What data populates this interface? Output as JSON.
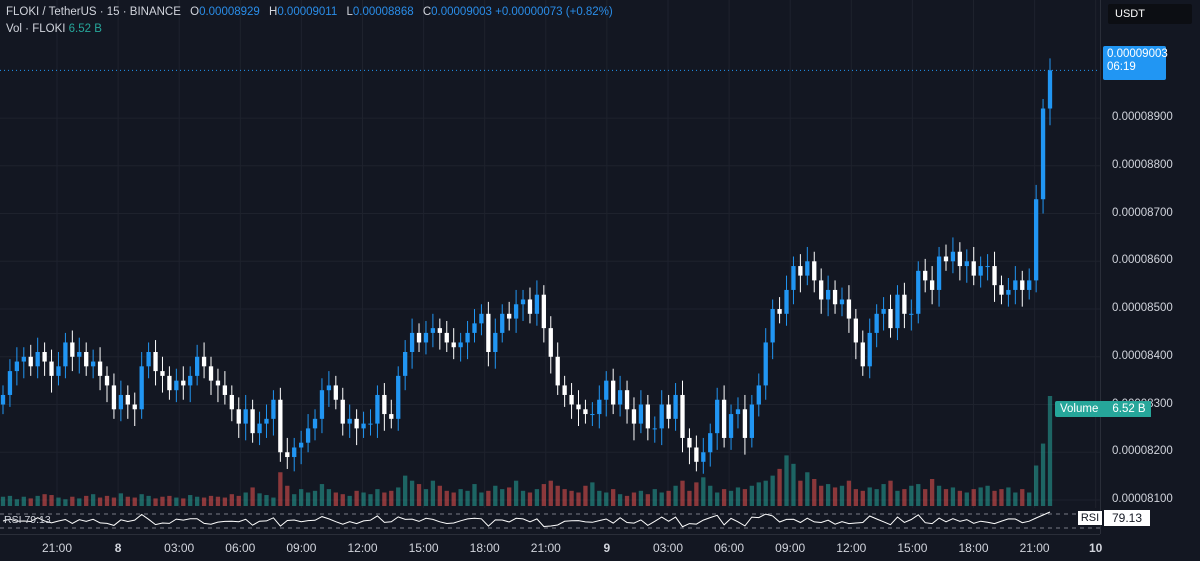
{
  "legend": {
    "symbol": "FLOKI / TetherUS · 15 · BINANCE",
    "open_key": "O",
    "open": "0.00008929",
    "high_key": "H",
    "high": "0.00009011",
    "low_key": "L",
    "low": "0.00008868",
    "close_key": "C",
    "close": "0.00009003",
    "change": "+0.00000073 (+0.82%)",
    "vol_label": "Vol · FLOKI",
    "vol_value": "6.52 B"
  },
  "currency": "USDT",
  "last_price": {
    "value": "0.00009003",
    "countdown": "06:19"
  },
  "volume_tag": {
    "label": "Volume",
    "value": "6.52 B"
  },
  "rsi": {
    "label": "RSI",
    "value": "79.13"
  },
  "colors": {
    "up": "#2196f3",
    "down": "#ffffff",
    "vol_up": "#26a69a",
    "vol_down": "#ef5350",
    "bg": "#131722"
  },
  "chart_data": {
    "type": "candlestick",
    "price_ticks": [
      "0.00008900",
      "0.00008800",
      "0.00008700",
      "0.00008600",
      "0.00008500",
      "0.00008400",
      "0.00008300",
      "0.00008200",
      "0.00008100"
    ],
    "time_ticks": [
      "21:00",
      "8",
      "03:00",
      "06:00",
      "09:00",
      "12:00",
      "15:00",
      "18:00",
      "21:00",
      "9",
      "03:00",
      "06:00",
      "09:00",
      "12:00",
      "15:00",
      "18:00",
      "21:00",
      "10"
    ],
    "ylim": [
      8.1e-05,
      9.03e-05
    ],
    "price_path": [
      8.32e-05,
      8.37e-05,
      8.39e-05,
      8.4e-05,
      8.38e-05,
      8.41e-05,
      8.39e-05,
      8.36e-05,
      8.38e-05,
      8.43e-05,
      8.4e-05,
      8.41e-05,
      8.38e-05,
      8.39e-05,
      8.36e-05,
      8.34e-05,
      8.29e-05,
      8.32e-05,
      8.3e-05,
      8.29e-05,
      8.38e-05,
      8.41e-05,
      8.37e-05,
      8.36e-05,
      8.33e-05,
      8.35e-05,
      8.34e-05,
      8.36e-05,
      8.4e-05,
      8.38e-05,
      8.35e-05,
      8.34e-05,
      8.32e-05,
      8.29e-05,
      8.26e-05,
      8.29e-05,
      8.24e-05,
      8.26e-05,
      8.27e-05,
      8.31e-05,
      8.2e-05,
      8.19e-05,
      8.21e-05,
      8.22e-05,
      8.25e-05,
      8.27e-05,
      8.33e-05,
      8.34e-05,
      8.31e-05,
      8.26e-05,
      8.27e-05,
      8.25e-05,
      8.26e-05,
      8.26e-05,
      8.32e-05,
      8.28e-05,
      8.27e-05,
      8.36e-05,
      8.41e-05,
      8.45e-05,
      8.43e-05,
      8.45e-05,
      8.46e-05,
      8.45e-05,
      8.43e-05,
      8.42e-05,
      8.43e-05,
      8.45e-05,
      8.47e-05,
      8.49e-05,
      8.41e-05,
      8.45e-05,
      8.49e-05,
      8.48e-05,
      8.51e-05,
      8.52e-05,
      8.49e-05,
      8.53e-05,
      8.46e-05,
      8.4e-05,
      8.34e-05,
      8.32e-05,
      8.3e-05,
      8.29e-05,
      8.28e-05,
      8.28e-05,
      8.31e-05,
      8.35e-05,
      8.3e-05,
      8.33e-05,
      8.29e-05,
      8.26e-05,
      8.3e-05,
      8.25e-05,
      8.25e-05,
      8.3e-05,
      8.27e-05,
      8.32e-05,
      8.23e-05,
      8.21e-05,
      8.18e-05,
      8.2e-05,
      8.24e-05,
      8.31e-05,
      8.23e-05,
      8.28e-05,
      8.29e-05,
      8.23e-05,
      8.3e-05,
      8.34e-05,
      8.43e-05,
      8.5e-05,
      8.49e-05,
      8.54e-05,
      8.59e-05,
      8.57e-05,
      8.6e-05,
      8.56e-05,
      8.52e-05,
      8.54e-05,
      8.51e-05,
      8.52e-05,
      8.48e-05,
      8.43e-05,
      8.38e-05,
      8.45e-05,
      8.49e-05,
      8.5e-05,
      8.46e-05,
      8.53e-05,
      8.49e-05,
      8.49e-05,
      8.58e-05,
      8.56e-05,
      8.54e-05,
      8.61e-05,
      8.6e-05,
      8.62e-05,
      8.59e-05,
      8.6e-05,
      8.57e-05,
      8.59e-05,
      8.59e-05,
      8.55e-05,
      8.53e-05,
      8.54e-05,
      8.56e-05,
      8.54e-05,
      8.56e-05,
      8.73e-05,
      8.92e-05,
      9e-05
    ],
    "volume_path": [
      0.55,
      0.6,
      0.4,
      0.55,
      0.45,
      0.6,
      0.7,
      0.65,
      0.5,
      0.4,
      0.55,
      0.45,
      0.6,
      0.7,
      0.5,
      0.6,
      0.5,
      0.75,
      0.55,
      0.5,
      0.7,
      0.6,
      0.45,
      0.55,
      0.6,
      0.5,
      0.45,
      0.65,
      0.55,
      0.5,
      0.6,
      0.55,
      0.5,
      0.7,
      0.6,
      0.8,
      1.1,
      0.75,
      0.65,
      0.5,
      2.0,
      1.2,
      0.7,
      1.0,
      0.8,
      0.9,
      1.3,
      1.0,
      0.8,
      0.7,
      0.6,
      0.9,
      0.8,
      0.7,
      1.0,
      0.8,
      0.9,
      1.1,
      1.8,
      1.5,
      1.3,
      1.0,
      1.5,
      1.2,
      0.9,
      0.8,
      1.0,
      0.9,
      1.3,
      0.8,
      0.9,
      1.2,
      1.0,
      1.1,
      1.5,
      0.9,
      0.8,
      1.0,
      1.3,
      1.5,
      1.2,
      1.0,
      0.9,
      0.8,
      1.2,
      1.4,
      0.9,
      0.8,
      1.0,
      0.7,
      0.6,
      0.8,
      0.9,
      0.7,
      1.0,
      0.8,
      0.9,
      1.2,
      1.5,
      0.9,
      1.4,
      1.7,
      1.2,
      0.8,
      1.0,
      0.9,
      1.1,
      1.0,
      1.2,
      1.4,
      1.5,
      1.8,
      2.2,
      3.0,
      2.5,
      1.5,
      2.0,
      1.6,
      1.2,
      1.3,
      1.1,
      1.2,
      1.5,
      1.0,
      0.9,
      1.1,
      1.0,
      1.3,
      1.5,
      0.9,
      1.0,
      1.2,
      1.3,
      1.0,
      1.6,
      1.2,
      1.0,
      1.1,
      0.9,
      0.8,
      1.0,
      1.1,
      1.2,
      0.9,
      1.0,
      1.1,
      0.8,
      1.0,
      0.8,
      2.4,
      3.7,
      6.52
    ]
  }
}
